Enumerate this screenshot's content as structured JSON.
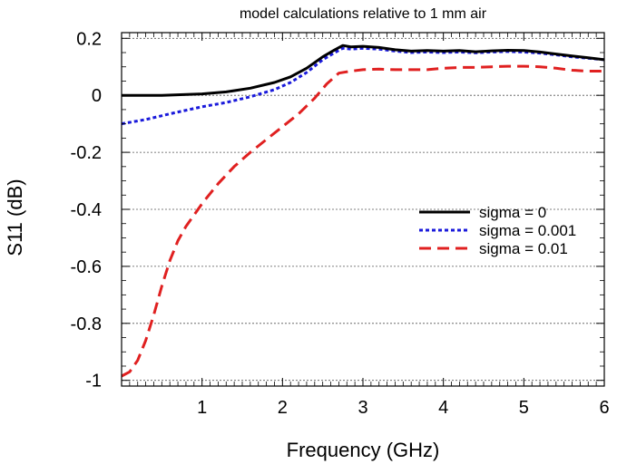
{
  "chart_data": {
    "type": "line",
    "title": "model calculations relative to 1 mm air",
    "xlabel": "Frequency (GHz)",
    "ylabel": "S11 (dB)",
    "xlim": [
      0,
      6
    ],
    "ylim": [
      -1.02,
      0.22
    ],
    "xticks": [
      1,
      2,
      3,
      4,
      5,
      6
    ],
    "xtick_labels": [
      "1",
      "2",
      "3",
      "4",
      "5",
      "6"
    ],
    "yticks": [
      0.2,
      0,
      -0.2,
      -0.4,
      -0.6,
      -0.8,
      -1
    ],
    "ytick_labels": [
      "0.2",
      "0",
      "-0.2",
      "-0.4",
      "-0.6",
      "-0.8",
      "-1"
    ],
    "grid": "horizontal dotted",
    "legend_position": "center-right",
    "series": [
      {
        "name": "sigma = 0",
        "color": "#000000",
        "dash": "solid",
        "x": [
          0.0,
          0.5,
          1.0,
          1.3,
          1.6,
          1.9,
          2.1,
          2.3,
          2.5,
          2.65,
          2.75,
          2.85,
          3.0,
          3.2,
          3.4,
          3.6,
          3.8,
          4.0,
          4.2,
          4.4,
          4.6,
          4.8,
          5.0,
          5.2,
          5.4,
          5.6,
          5.8,
          6.0
        ],
        "y": [
          0.0,
          0.0,
          0.005,
          0.012,
          0.025,
          0.045,
          0.065,
          0.095,
          0.135,
          0.16,
          0.175,
          0.17,
          0.172,
          0.168,
          0.16,
          0.155,
          0.157,
          0.155,
          0.157,
          0.153,
          0.156,
          0.158,
          0.157,
          0.152,
          0.145,
          0.138,
          0.132,
          0.125
        ]
      },
      {
        "name": "sigma = 0.001",
        "color": "#1a1adb",
        "dash": "dotted",
        "x": [
          0.0,
          0.3,
          0.6,
          1.0,
          1.3,
          1.6,
          1.9,
          2.1,
          2.3,
          2.5,
          2.65,
          2.75,
          2.85,
          3.0,
          3.2,
          3.4,
          3.6,
          3.8,
          4.0,
          4.2,
          4.4,
          4.6,
          4.8,
          5.0,
          5.2,
          5.4,
          5.6,
          5.8,
          6.0
        ],
        "y": [
          -0.1,
          -0.085,
          -0.065,
          -0.04,
          -0.025,
          -0.005,
          0.02,
          0.045,
          0.08,
          0.125,
          0.15,
          0.165,
          0.162,
          0.165,
          0.162,
          0.155,
          0.15,
          0.152,
          0.15,
          0.152,
          0.149,
          0.152,
          0.154,
          0.152,
          0.148,
          0.142,
          0.135,
          0.13,
          0.125
        ]
      },
      {
        "name": "sigma = 0.01",
        "color": "#e02020",
        "dash": "dashed",
        "x": [
          0.0,
          0.1,
          0.2,
          0.3,
          0.4,
          0.5,
          0.6,
          0.7,
          0.8,
          0.9,
          1.0,
          1.2,
          1.4,
          1.6,
          1.8,
          2.0,
          2.2,
          2.4,
          2.55,
          2.7,
          2.85,
          3.0,
          3.2,
          3.4,
          3.6,
          3.8,
          4.0,
          4.2,
          4.4,
          4.6,
          4.8,
          5.0,
          5.2,
          5.4,
          5.6,
          5.8,
          6.0
        ],
        "y": [
          -0.985,
          -0.97,
          -0.93,
          -0.86,
          -0.77,
          -0.67,
          -0.58,
          -0.51,
          -0.46,
          -0.42,
          -0.38,
          -0.31,
          -0.25,
          -0.2,
          -0.155,
          -0.11,
          -0.065,
          -0.01,
          0.04,
          0.078,
          0.085,
          0.09,
          0.092,
          0.09,
          0.09,
          0.09,
          0.095,
          0.098,
          0.098,
          0.1,
          0.102,
          0.102,
          0.1,
          0.095,
          0.088,
          0.085,
          0.085
        ]
      }
    ]
  }
}
